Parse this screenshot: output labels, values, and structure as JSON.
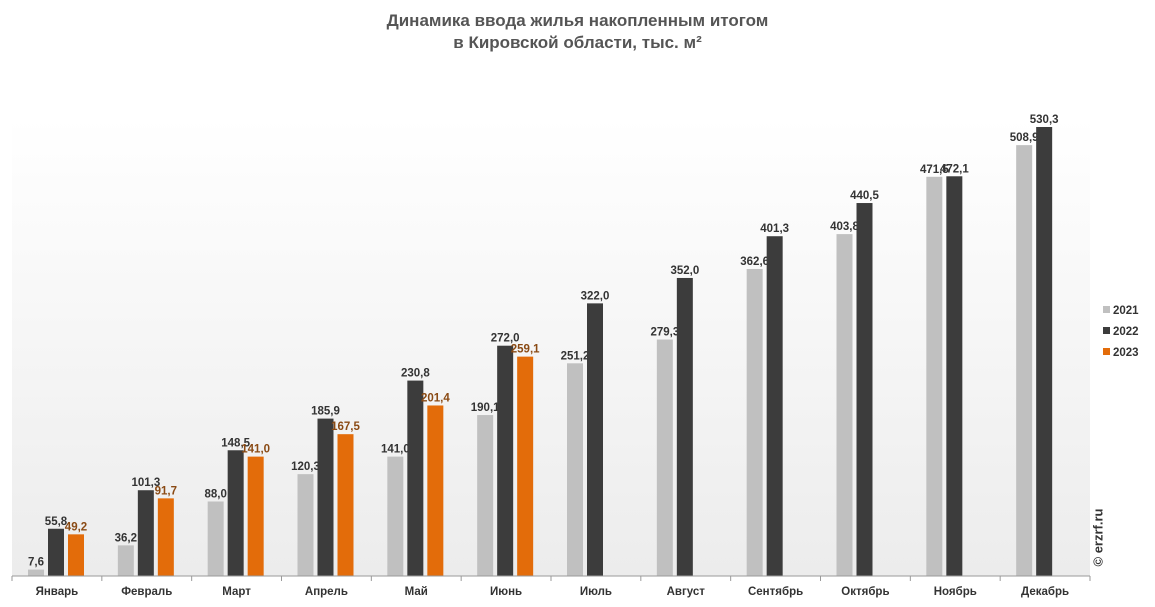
{
  "chart_data": {
    "type": "bar",
    "title_lines": [
      "Динамика ввода жилья накопленным итогом",
      "в Кировской области, тыс. м²"
    ],
    "categories": [
      "Январь",
      "Февраль",
      "Март",
      "Апрель",
      "Май",
      "Июнь",
      "Июль",
      "Август",
      "Сентябрь",
      "Октябрь",
      "Ноябрь",
      "Декабрь"
    ],
    "series": [
      {
        "name": "2021",
        "color": "#c0c0c0",
        "label_color": "#333333",
        "values": [
          7.6,
          36.2,
          88.0,
          120.3,
          141.0,
          190.1,
          251.2,
          279.3,
          362.6,
          403.8,
          471.5,
          508.9
        ],
        "labels": [
          "7,6",
          "36,2",
          "88,0",
          "120,3",
          "141,0",
          "190,1",
          "251,2",
          "279,3",
          "362,6",
          "403,8",
          "471,5",
          "508,9"
        ]
      },
      {
        "name": "2022",
        "color": "#3c3c3c",
        "label_color": "#333333",
        "values": [
          55.8,
          101.3,
          148.5,
          185.9,
          230.8,
          272.0,
          322.0,
          352.0,
          401.3,
          440.5,
          472.1,
          530.3
        ],
        "labels": [
          "55,8",
          "101,3",
          "148,5",
          "185,9",
          "230,8",
          "272,0",
          "322,0",
          "352,0",
          "401,3",
          "440,5",
          "472,1",
          "530,3"
        ]
      },
      {
        "name": "2023",
        "color": "#e36c0a",
        "label_color": "#8a4a14",
        "values": [
          49.2,
          91.7,
          141.0,
          167.5,
          201.4,
          259.1,
          null,
          null,
          null,
          null,
          null,
          null
        ],
        "labels": [
          "49,2",
          "91,7",
          "141,0",
          "167,5",
          "201,4",
          "259,1",
          null,
          null,
          null,
          null,
          null,
          null
        ]
      }
    ],
    "ylim": [
      0,
      530.3
    ],
    "legend_position": "right",
    "grid": false
  },
  "watermark": "© erzrf.ru"
}
